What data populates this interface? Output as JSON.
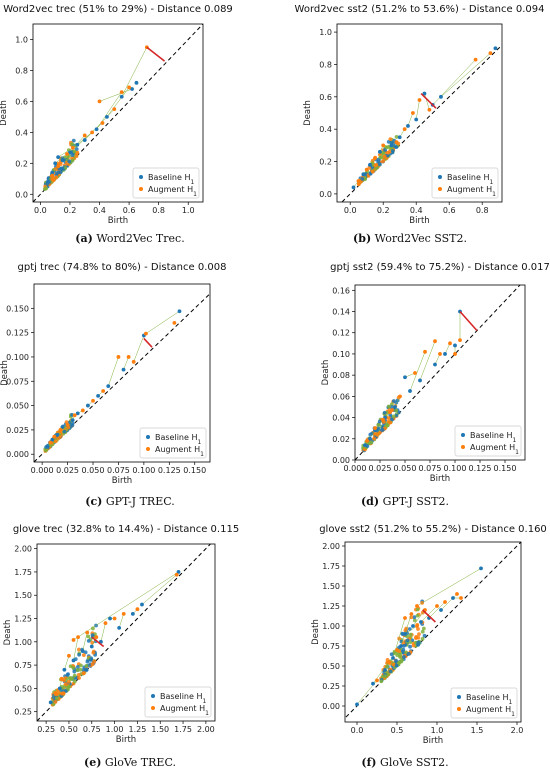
{
  "colors": {
    "baseline": "#1f77b4",
    "augment": "#ff7f0e",
    "overlap": "#7fb03a",
    "distance_segment": "#d62728",
    "diagonal": "#000000"
  },
  "panels": [
    {
      "caption_letter": "(a)",
      "caption_text": " Word2Vec Trec.",
      "legend_labels": [
        "Baseline H",
        "Augment H"
      ],
      "chart_data": {
        "type": "scatter",
        "title": "Word2vec trec (51% to 29%) - Distance 0.089",
        "xlabel": "Birth",
        "ylabel": "Death",
        "xlim": [
          -0.05,
          1.1
        ],
        "ylim": [
          -0.05,
          1.1
        ],
        "xticks": [
          0.0,
          0.2,
          0.4,
          0.6,
          0.8,
          1.0
        ],
        "yticks": [
          0.0,
          0.2,
          0.4,
          0.6,
          0.8,
          1.0
        ],
        "tick_decimals": 1,
        "legend": "lower-right",
        "series": [
          {
            "name": "Baseline H1",
            "points": [
              [
                0.05,
                0.08
              ],
              [
                0.08,
                0.14
              ],
              [
                0.1,
                0.2
              ],
              [
                0.12,
                0.24
              ],
              [
                0.15,
                0.22
              ],
              [
                0.2,
                0.27
              ],
              [
                0.25,
                0.32
              ],
              [
                0.3,
                0.35
              ],
              [
                0.38,
                0.42
              ],
              [
                0.45,
                0.5
              ],
              [
                0.55,
                0.63
              ],
              [
                0.62,
                0.68
              ],
              [
                0.65,
                0.72
              ]
            ]
          },
          {
            "name": "Augment H1",
            "points": [
              [
                0.08,
                0.12
              ],
              [
                0.12,
                0.18
              ],
              [
                0.18,
                0.26
              ],
              [
                0.22,
                0.3
              ],
              [
                0.3,
                0.38
              ],
              [
                0.35,
                0.4
              ],
              [
                0.42,
                0.46
              ],
              [
                0.5,
                0.55
              ],
              [
                0.55,
                0.66
              ],
              [
                0.6,
                0.69
              ],
              [
                0.72,
                0.95
              ],
              [
                0.4,
                0.6
              ]
            ]
          }
        ],
        "cloud": {
          "x": [
            0.03,
            0.25
          ],
          "spread": 0.12,
          "n": 130
        },
        "distance_segment": [
          [
            0.72,
            0.95
          ],
          [
            0.84,
            0.86
          ]
        ]
      }
    },
    {
      "caption_letter": "(b)",
      "caption_text": " Word2Vec SST2.",
      "legend_labels": [
        "Baseline H",
        "Augment H"
      ],
      "chart_data": {
        "type": "scatter",
        "title": "Word2vec sst2 (51.2% to 53.6%) - Distance 0.094",
        "xlabel": "Birth",
        "ylabel": "Death",
        "xlim": [
          -0.08,
          0.92
        ],
        "ylim": [
          -0.05,
          1.05
        ],
        "xticks": [
          0.0,
          0.2,
          0.4,
          0.6,
          0.8
        ],
        "yticks": [
          0.0,
          0.2,
          0.4,
          0.6,
          0.8,
          1.0
        ],
        "tick_decimals": 1,
        "legend": "lower-right",
        "series": [
          {
            "name": "Baseline H1",
            "points": [
              [
                0.02,
                0.04
              ],
              [
                0.08,
                0.12
              ],
              [
                0.12,
                0.18
              ],
              [
                0.18,
                0.26
              ],
              [
                0.25,
                0.3
              ],
              [
                0.3,
                0.35
              ],
              [
                0.35,
                0.42
              ],
              [
                0.4,
                0.46
              ],
              [
                0.45,
                0.62
              ],
              [
                0.5,
                0.55
              ],
              [
                0.55,
                0.6
              ],
              [
                0.88,
                0.9
              ]
            ]
          },
          {
            "name": "Augment H1",
            "points": [
              [
                0.05,
                0.08
              ],
              [
                0.1,
                0.15
              ],
              [
                0.15,
                0.22
              ],
              [
                0.2,
                0.3
              ],
              [
                0.28,
                0.32
              ],
              [
                0.33,
                0.4
              ],
              [
                0.38,
                0.5
              ],
              [
                0.42,
                0.58
              ],
              [
                0.48,
                0.52
              ],
              [
                0.76,
                0.83
              ],
              [
                0.85,
                0.87
              ]
            ]
          }
        ],
        "cloud": {
          "x": [
            0.05,
            0.3
          ],
          "spread": 0.11,
          "n": 120
        },
        "distance_segment": [
          [
            0.43,
            0.62
          ],
          [
            0.52,
            0.53
          ]
        ]
      }
    },
    {
      "caption_letter": "(c)",
      "caption_text": " GPT-J TREC.",
      "legend_labels": [
        "Baseline H",
        "Augment H"
      ],
      "chart_data": {
        "type": "scatter",
        "title": "gptj trec (74.8% to 80%) - Distance 0.008",
        "xlabel": "Birth",
        "ylabel": "Death",
        "xlim": [
          -0.008,
          0.165
        ],
        "ylim": [
          -0.008,
          0.175
        ],
        "xticks": [
          0.0,
          0.025,
          0.05,
          0.075,
          0.1,
          0.125,
          0.15
        ],
        "yticks": [
          0.0,
          0.025,
          0.05,
          0.075,
          0.1,
          0.125,
          0.15
        ],
        "tick_decimals": 3,
        "legend": "lower-right",
        "series": [
          {
            "name": "Baseline H1",
            "points": [
              [
                0.005,
                0.008
              ],
              [
                0.01,
                0.015
              ],
              [
                0.015,
                0.02
              ],
              [
                0.02,
                0.028
              ],
              [
                0.03,
                0.035
              ],
              [
                0.035,
                0.042
              ],
              [
                0.045,
                0.05
              ],
              [
                0.055,
                0.06
              ],
              [
                0.065,
                0.07
              ],
              [
                0.08,
                0.087
              ],
              [
                0.1,
                0.122
              ],
              [
                0.135,
                0.147
              ]
            ]
          },
          {
            "name": "Augment H1",
            "points": [
              [
                0.008,
                0.012
              ],
              [
                0.012,
                0.018
              ],
              [
                0.018,
                0.025
              ],
              [
                0.025,
                0.03
              ],
              [
                0.032,
                0.04
              ],
              [
                0.04,
                0.045
              ],
              [
                0.05,
                0.055
              ],
              [
                0.06,
                0.065
              ],
              [
                0.075,
                0.1
              ],
              [
                0.085,
                0.1
              ],
              [
                0.09,
                0.095
              ],
              [
                0.102,
                0.124
              ],
              [
                0.13,
                0.135
              ]
            ]
          }
        ],
        "cloud": {
          "x": [
            0.003,
            0.03
          ],
          "spread": 0.01,
          "n": 110
        },
        "distance_segment": [
          [
            0.1,
            0.119
          ],
          [
            0.108,
            0.11
          ]
        ]
      }
    },
    {
      "caption_letter": "(d)",
      "caption_text": " GPT-J SST2.",
      "legend_labels": [
        "Baseline H",
        "Augment H"
      ],
      "chart_data": {
        "type": "scatter",
        "title": "gptj sst2 (59.4% to 75.2%) - Distance 0.017",
        "xlabel": "Birth",
        "ylabel": "Death",
        "xlim": [
          0.0,
          0.17
        ],
        "ylim": [
          0.0,
          0.165
        ],
        "xticks": [
          0.0,
          0.025,
          0.05,
          0.075,
          0.1,
          0.125,
          0.15
        ],
        "yticks": [
          0.0,
          0.02,
          0.04,
          0.06,
          0.08,
          0.1,
          0.12,
          0.14,
          0.16
        ],
        "tick_decimals": 3,
        "y_tick_decimals": 2,
        "legend": "lower-right",
        "series": [
          {
            "name": "Baseline H1",
            "points": [
              [
                0.01,
                0.014
              ],
              [
                0.015,
                0.02
              ],
              [
                0.02,
                0.028
              ],
              [
                0.03,
                0.04
              ],
              [
                0.04,
                0.05
              ],
              [
                0.05,
                0.078
              ],
              [
                0.055,
                0.065
              ],
              [
                0.065,
                0.075
              ],
              [
                0.08,
                0.09
              ],
              [
                0.09,
                0.1
              ],
              [
                0.1,
                0.108
              ],
              [
                0.105,
                0.14
              ]
            ]
          },
          {
            "name": "Augment H1",
            "points": [
              [
                0.012,
                0.018
              ],
              [
                0.02,
                0.03
              ],
              [
                0.028,
                0.038
              ],
              [
                0.035,
                0.045
              ],
              [
                0.045,
                0.06
              ],
              [
                0.06,
                0.082
              ],
              [
                0.07,
                0.102
              ],
              [
                0.08,
                0.112
              ],
              [
                0.085,
                0.1
              ],
              [
                0.095,
                0.11
              ],
              [
                0.1,
                0.1
              ],
              [
                0.105,
                0.113
              ]
            ]
          }
        ],
        "cloud": {
          "x": [
            0.008,
            0.045
          ],
          "spread": 0.018,
          "n": 120
        },
        "distance_segment": [
          [
            0.105,
            0.14
          ],
          [
            0.122,
            0.122
          ]
        ]
      }
    },
    {
      "caption_letter": "(e)",
      "caption_text": " GloVe TREC.",
      "legend_labels": [
        "Baseline H",
        "Augment H"
      ],
      "chart_data": {
        "type": "scatter",
        "title": "glove trec (32.8% to 14.4%) - Distance 0.115",
        "xlabel": "Birth",
        "ylabel": "Death",
        "xlim": [
          0.15,
          2.1
        ],
        "ylim": [
          0.15,
          2.05
        ],
        "xticks": [
          0.25,
          0.5,
          0.75,
          1.0,
          1.25,
          1.5,
          1.75,
          2.0
        ],
        "yticks": [
          0.25,
          0.5,
          0.75,
          1.0,
          1.25,
          1.5,
          1.75,
          2.0
        ],
        "tick_decimals": 2,
        "legend": "lower-right",
        "series": [
          {
            "name": "Baseline H1",
            "points": [
              [
                0.3,
                0.35
              ],
              [
                0.4,
                0.5
              ],
              [
                0.45,
                0.7
              ],
              [
                0.55,
                0.8
              ],
              [
                0.65,
                0.9
              ],
              [
                0.75,
                0.95
              ],
              [
                0.85,
                1.0
              ],
              [
                0.95,
                1.25
              ],
              [
                1.05,
                1.15
              ],
              [
                1.2,
                1.3
              ],
              [
                1.3,
                1.4
              ],
              [
                1.7,
                1.75
              ]
            ]
          },
          {
            "name": "Augment H1",
            "points": [
              [
                0.35,
                0.45
              ],
              [
                0.42,
                0.6
              ],
              [
                0.5,
                0.85
              ],
              [
                0.6,
                1.05
              ],
              [
                0.7,
                1.1
              ],
              [
                0.8,
                1.05
              ],
              [
                0.9,
                1.2
              ],
              [
                1.0,
                1.25
              ],
              [
                1.1,
                1.3
              ],
              [
                1.25,
                1.35
              ],
              [
                1.68,
                1.72
              ],
              [
                0.55,
                1.02
              ]
            ]
          }
        ],
        "cloud": {
          "x": [
            0.3,
            0.8
          ],
          "spread": 0.35,
          "n": 150
        },
        "distance_segment": [
          [
            0.75,
            1.05
          ],
          [
            0.88,
            0.95
          ]
        ]
      }
    },
    {
      "caption_letter": "(f)",
      "caption_text": " GloVe SST2.",
      "legend_labels": [
        "Baseline H",
        "Augment H"
      ],
      "chart_data": {
        "type": "scatter",
        "title": "glove sst2 (51.2% to 55.2%) - Distance 0.160",
        "xlabel": "Birth",
        "ylabel": "Death",
        "xlim": [
          -0.15,
          2.05
        ],
        "ylim": [
          -0.2,
          2.05
        ],
        "xticks": [
          0.0,
          0.5,
          1.0,
          1.5,
          2.0
        ],
        "yticks": [
          0.0,
          0.25,
          0.5,
          0.75,
          1.0,
          1.25,
          1.5,
          1.75,
          2.0
        ],
        "tick_decimals": 2,
        "x_tick_decimals": 1,
        "legend": "lower-right",
        "series": [
          {
            "name": "Baseline H1",
            "points": [
              [
                0.0,
                0.02
              ],
              [
                0.2,
                0.28
              ],
              [
                0.35,
                0.45
              ],
              [
                0.45,
                0.6
              ],
              [
                0.55,
                0.75
              ],
              [
                0.6,
                0.9
              ],
              [
                0.7,
                1.0
              ],
              [
                0.8,
                1.05
              ],
              [
                0.9,
                1.1
              ],
              [
                1.05,
                1.2
              ],
              [
                1.2,
                1.35
              ],
              [
                1.55,
                1.72
              ]
            ]
          },
          {
            "name": "Augment H1",
            "points": [
              [
                0.25,
                0.32
              ],
              [
                0.4,
                0.55
              ],
              [
                0.5,
                0.7
              ],
              [
                0.6,
                1.1
              ],
              [
                0.68,
                1.15
              ],
              [
                0.75,
                1.0
              ],
              [
                0.85,
                1.2
              ],
              [
                1.0,
                1.25
              ],
              [
                1.1,
                1.3
              ],
              [
                1.25,
                1.4
              ],
              [
                1.3,
                1.35
              ],
              [
                0.75,
                1.25
              ]
            ]
          }
        ],
        "cloud": {
          "x": [
            0.3,
            0.85
          ],
          "spread": 0.45,
          "n": 160
        },
        "distance_segment": [
          [
            0.82,
            1.2
          ],
          [
            0.98,
            1.05
          ]
        ]
      }
    }
  ]
}
